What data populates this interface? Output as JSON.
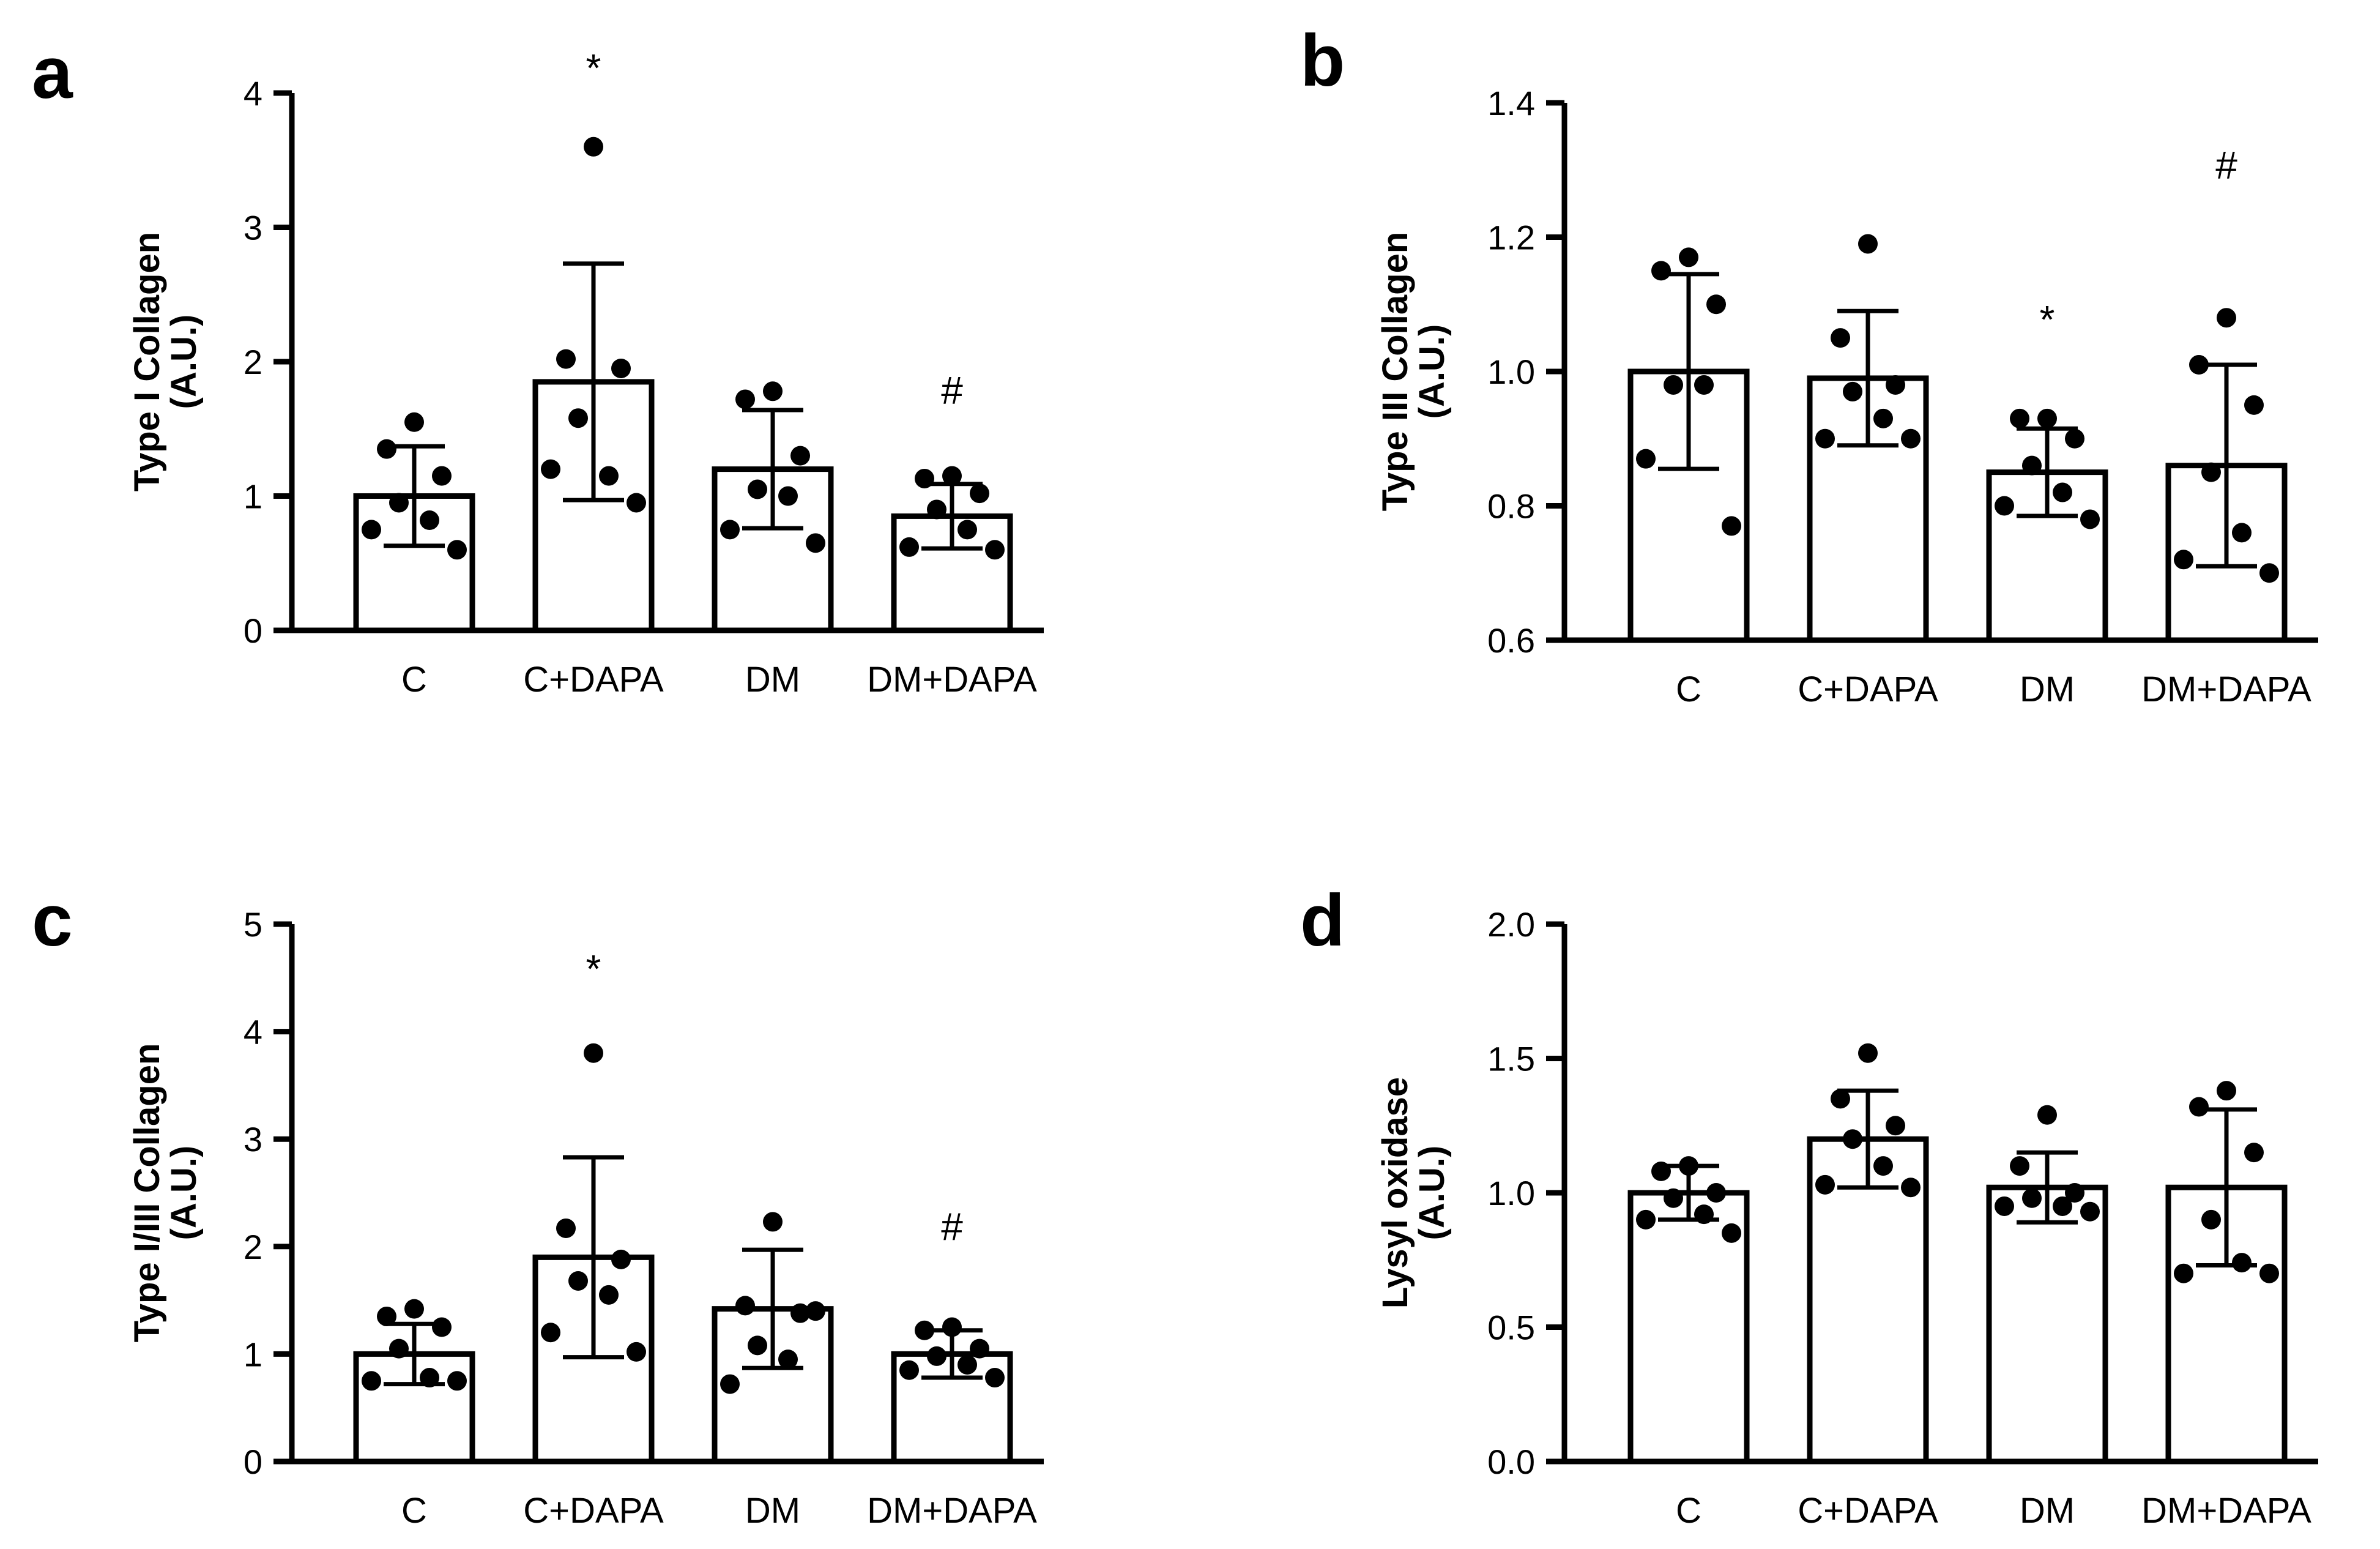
{
  "chart_data": [
    {
      "type": "bar",
      "panel_label": "a",
      "categories": [
        "C",
        "C+DAPA",
        "DM",
        "DM+DAPA"
      ],
      "ylabel_line1": "Type I Collagen",
      "ylabel_line2": "(A.U.)",
      "ylim": [
        0,
        4
      ],
      "yticks": [
        0,
        1,
        2,
        3,
        4
      ],
      "ytick_labels": [
        "0",
        "1",
        "2",
        "3",
        "4"
      ],
      "means": [
        1.0,
        1.85,
        1.2,
        0.85
      ],
      "sd": [
        0.37,
        0.88,
        0.44,
        0.24
      ],
      "points": [
        [
          1.55,
          1.35,
          1.15,
          0.95,
          0.82,
          0.75,
          0.6
        ],
        [
          3.6,
          2.02,
          1.95,
          1.58,
          1.15,
          1.2,
          0.95
        ],
        [
          1.78,
          1.72,
          1.3,
          1.05,
          1.0,
          0.75,
          0.65
        ],
        [
          1.15,
          1.13,
          1.02,
          0.9,
          0.75,
          0.62,
          0.6
        ]
      ],
      "annotations": [
        {
          "category": "C+DAPA",
          "symbol": "*",
          "y": 4.2
        },
        {
          "category": "DM+DAPA",
          "symbol": "#",
          "y": 1.8
        }
      ]
    },
    {
      "type": "bar",
      "panel_label": "b",
      "categories": [
        "C",
        "C+DAPA",
        "DM",
        "DM+DAPA"
      ],
      "ylabel_line1": "Type III Collagen",
      "ylabel_line2": "(A.U.)",
      "ylim": [
        0.6,
        1.4
      ],
      "yticks": [
        0.6,
        0.8,
        1.0,
        1.2,
        1.4
      ],
      "ytick_labels": [
        "0.6",
        "0.8",
        "1.0",
        "1.2",
        "1.4"
      ],
      "means": [
        1.0,
        0.99,
        0.85,
        0.86
      ],
      "sd": [
        0.145,
        0.1,
        0.065,
        0.15
      ],
      "points": [
        [
          1.17,
          1.15,
          1.1,
          0.98,
          0.98,
          0.87,
          0.77
        ],
        [
          1.19,
          1.05,
          0.98,
          0.97,
          0.93,
          0.9,
          0.9
        ],
        [
          0.93,
          0.93,
          0.9,
          0.86,
          0.82,
          0.8,
          0.78
        ],
        [
          1.08,
          1.01,
          0.95,
          0.85,
          0.76,
          0.72,
          0.7
        ]
      ],
      "annotations": [
        {
          "category": "DM",
          "symbol": "*",
          "y": 1.08
        },
        {
          "category": "DM+DAPA",
          "symbol": "#",
          "y": 1.31
        }
      ]
    },
    {
      "type": "bar",
      "panel_label": "c",
      "categories": [
        "C",
        "C+DAPA",
        "DM",
        "DM+DAPA"
      ],
      "ylabel_line1": "Type I/III Collagen",
      "ylabel_line2": "(A.U.)",
      "ylim": [
        0,
        5
      ],
      "yticks": [
        0,
        1,
        2,
        3,
        4,
        5
      ],
      "ytick_labels": [
        "0",
        "1",
        "2",
        "3",
        "4",
        "5"
      ],
      "means": [
        1.0,
        1.9,
        1.42,
        1.0
      ],
      "sd": [
        0.28,
        0.93,
        0.55,
        0.22
      ],
      "points": [
        [
          1.42,
          1.35,
          1.25,
          1.05,
          0.78,
          0.75,
          0.75
        ],
        [
          3.8,
          2.17,
          1.88,
          1.68,
          1.55,
          1.2,
          1.02
        ],
        [
          2.23,
          1.45,
          1.38,
          1.08,
          0.95,
          0.72,
          1.4
        ],
        [
          1.25,
          1.22,
          1.05,
          0.98,
          0.9,
          0.85,
          0.78
        ]
      ],
      "annotations": [
        {
          "category": "C+DAPA",
          "symbol": "*",
          "y": 4.6
        },
        {
          "category": "DM+DAPA",
          "symbol": "#",
          "y": 2.2
        }
      ]
    },
    {
      "type": "bar",
      "panel_label": "d",
      "categories": [
        "C",
        "C+DAPA",
        "DM",
        "DM+DAPA"
      ],
      "ylabel_line1": "Lysyl oxidase",
      "ylabel_line2": "(A.U.)",
      "ylim": [
        0,
        2
      ],
      "yticks": [
        0.0,
        0.5,
        1.0,
        1.5,
        2.0
      ],
      "ytick_labels": [
        "0.0",
        "0.5",
        "1.0",
        "1.5",
        "2.0"
      ],
      "means": [
        1.0,
        1.2,
        1.02,
        1.02
      ],
      "sd": [
        0.1,
        0.18,
        0.13,
        0.29
      ],
      "points": [
        [
          1.1,
          1.08,
          1.0,
          0.98,
          0.92,
          0.9,
          0.85
        ],
        [
          1.52,
          1.35,
          1.25,
          1.2,
          1.1,
          1.03,
          1.02
        ],
        [
          1.29,
          1.1,
          1.0,
          0.98,
          0.95,
          0.95,
          0.93
        ],
        [
          1.38,
          1.32,
          1.15,
          0.9,
          0.74,
          0.7,
          0.7
        ]
      ],
      "annotations": []
    }
  ]
}
